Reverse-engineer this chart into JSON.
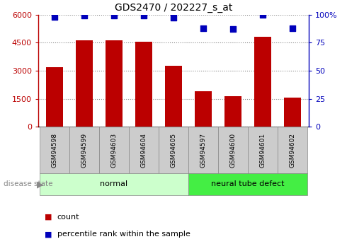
{
  "title": "GDS2470 / 202227_s_at",
  "categories": [
    "GSM94598",
    "GSM94599",
    "GSM94603",
    "GSM94604",
    "GSM94605",
    "GSM94597",
    "GSM94600",
    "GSM94601",
    "GSM94602"
  ],
  "counts": [
    3200,
    4620,
    4620,
    4550,
    3250,
    1900,
    1650,
    4800,
    1550
  ],
  "percentiles": [
    98,
    99,
    99,
    99,
    97,
    88,
    87,
    100,
    88
  ],
  "bar_color": "#bb0000",
  "dot_color": "#0000bb",
  "groups": [
    {
      "label": "normal",
      "start": 0,
      "end": 5,
      "color": "#ccffcc"
    },
    {
      "label": "neural tube defect",
      "start": 5,
      "end": 9,
      "color": "#44ee44"
    }
  ],
  "ylim_left": [
    0,
    6000
  ],
  "ylim_right": [
    0,
    100
  ],
  "yticks_left": [
    0,
    1500,
    3000,
    4500,
    6000
  ],
  "ytick_labels_left": [
    "0",
    "1500",
    "3000",
    "4500",
    "6000"
  ],
  "yticks_right": [
    0,
    25,
    50,
    75,
    100
  ],
  "ytick_labels_right": [
    "0",
    "25",
    "50",
    "75",
    "100%"
  ],
  "grid_color": "#888888",
  "tick_area_bg": "#cccccc",
  "legend_count_label": "count",
  "legend_pct_label": "percentile rank within the sample",
  "disease_state_label": "disease state",
  "bar_width": 0.55,
  "fig_width": 4.9,
  "fig_height": 3.45,
  "dpi": 100
}
